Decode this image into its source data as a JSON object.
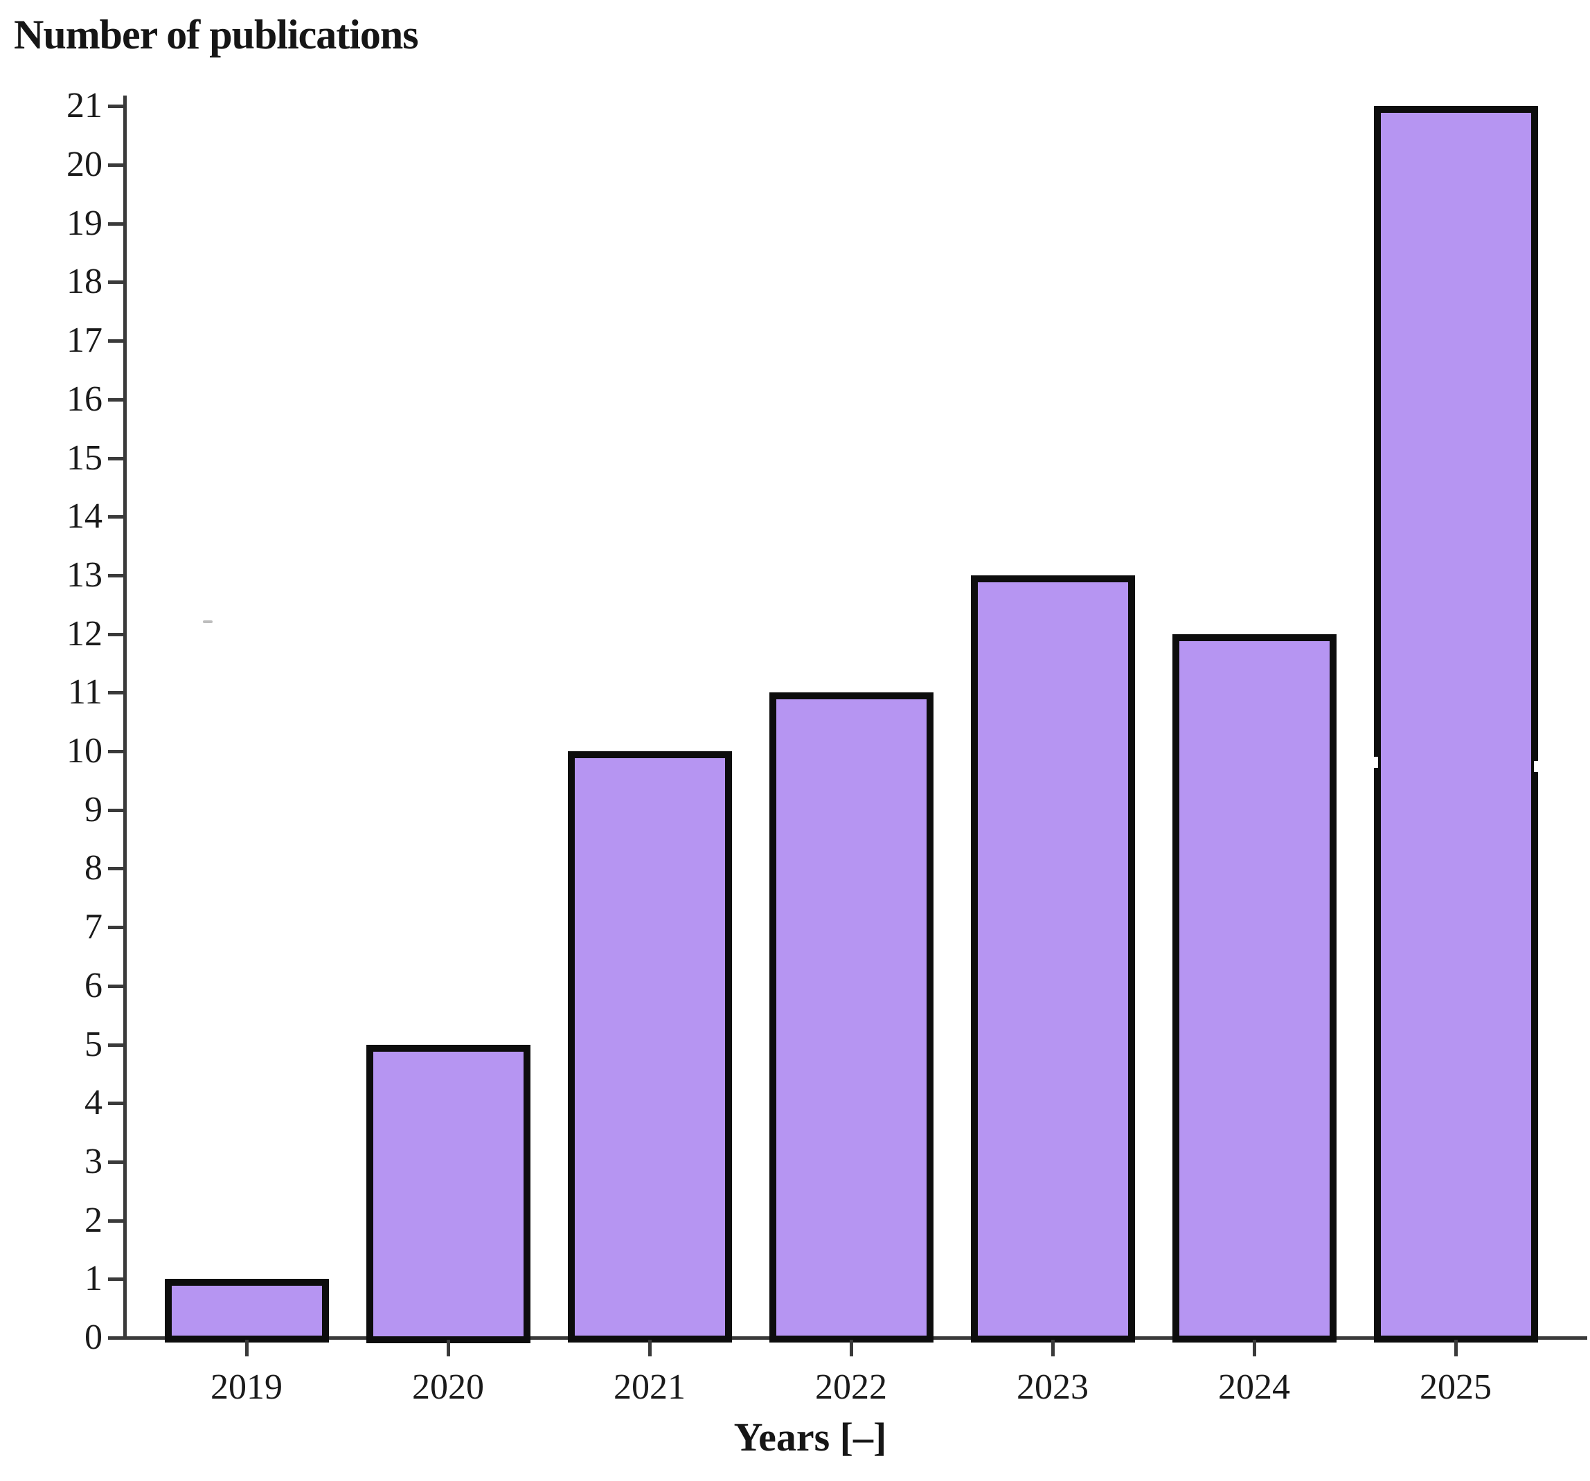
{
  "chart_data": {
    "type": "bar",
    "title": "Number of publications",
    "xlabel": "Years [–]",
    "ylabel": "Number of publications",
    "categories": [
      "2019",
      "2020",
      "2021",
      "2022",
      "2023",
      "2024",
      "2025"
    ],
    "values": [
      1,
      5,
      10,
      11,
      13,
      12,
      21
    ],
    "ylim": [
      0,
      21
    ],
    "ytick_step": 1,
    "grid": false,
    "legend": null,
    "bar_color": "#b695f2",
    "bar_border_color": "#0d0d0d",
    "axis_color": "#3a3a3a",
    "text_color": "#1a1a1a",
    "title_position": "top-left",
    "seam_artifact": {
      "category": "2025",
      "value": 10
    }
  }
}
